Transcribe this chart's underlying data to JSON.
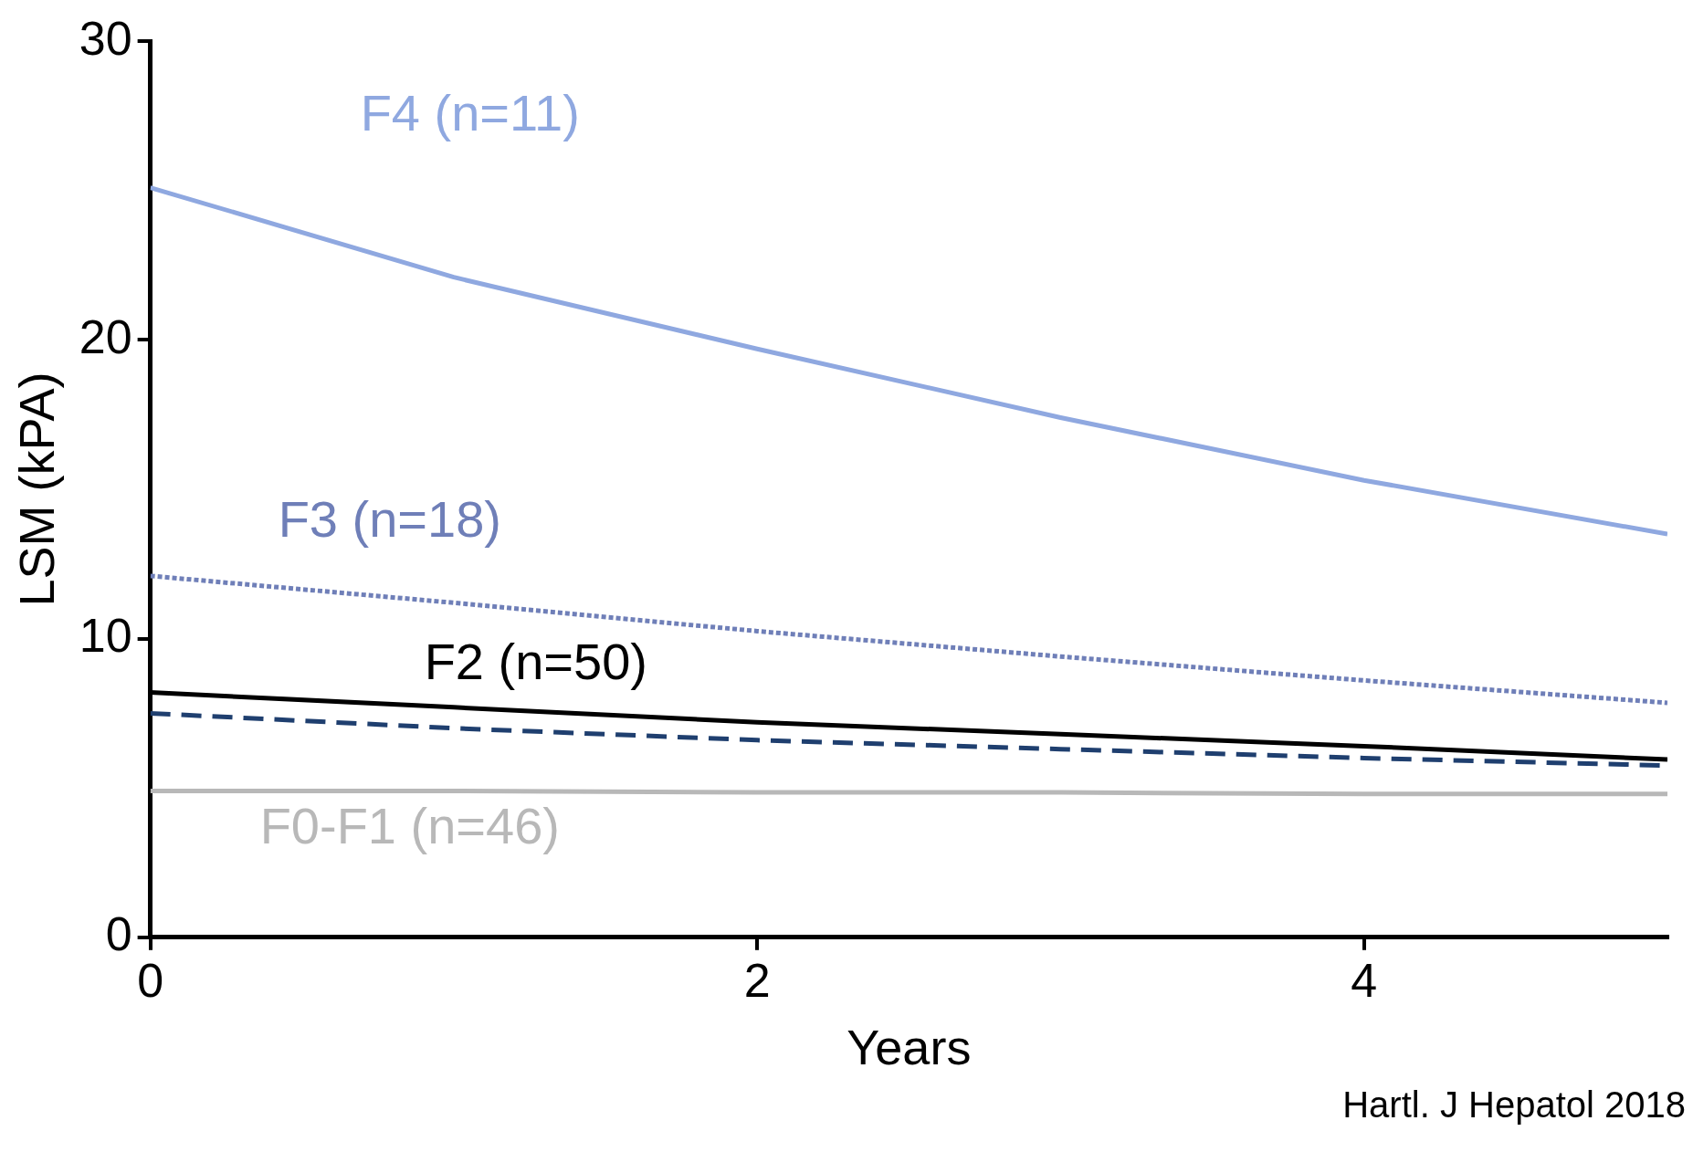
{
  "chart_data": {
    "type": "line",
    "xlabel": "Years",
    "ylabel": "LSM (kPA)",
    "x": [
      0,
      1,
      2,
      3,
      4,
      5
    ],
    "xlim": [
      0,
      5
    ],
    "xticks": [
      0,
      2,
      4
    ],
    "ylim": [
      0,
      30
    ],
    "yticks": [
      0,
      10,
      20,
      30
    ],
    "grid": false,
    "legend": false,
    "marker": "none",
    "series": [
      {
        "name": "F4 (n=11)",
        "color": "#8fa8e0",
        "line_style": "solid",
        "values": [
          25.1,
          22.1,
          19.7,
          17.4,
          15.3,
          13.5
        ]
      },
      {
        "name": "F3 (n=18)",
        "color": "#6f7fb8",
        "line_style": "dotted",
        "values": [
          12.1,
          11.2,
          10.25,
          9.4,
          8.6,
          7.85
        ]
      },
      {
        "name": "F2 (n=50)",
        "color": "#000000",
        "line_style": "solid",
        "values": [
          8.2,
          7.7,
          7.2,
          6.8,
          6.4,
          5.95
        ]
      },
      {
        "color": "#1f3f6f",
        "line_style": "dashed",
        "values": [
          7.5,
          7.0,
          6.6,
          6.3,
          6.0,
          5.75
        ]
      },
      {
        "name": "F0-F1 (n=46)",
        "color": "#b8b8b8",
        "line_style": "solid",
        "values": [
          4.9,
          4.9,
          4.85,
          4.85,
          4.8,
          4.8
        ]
      }
    ],
    "annotations": [
      "Hartl. J Hepatol 2018"
    ]
  }
}
